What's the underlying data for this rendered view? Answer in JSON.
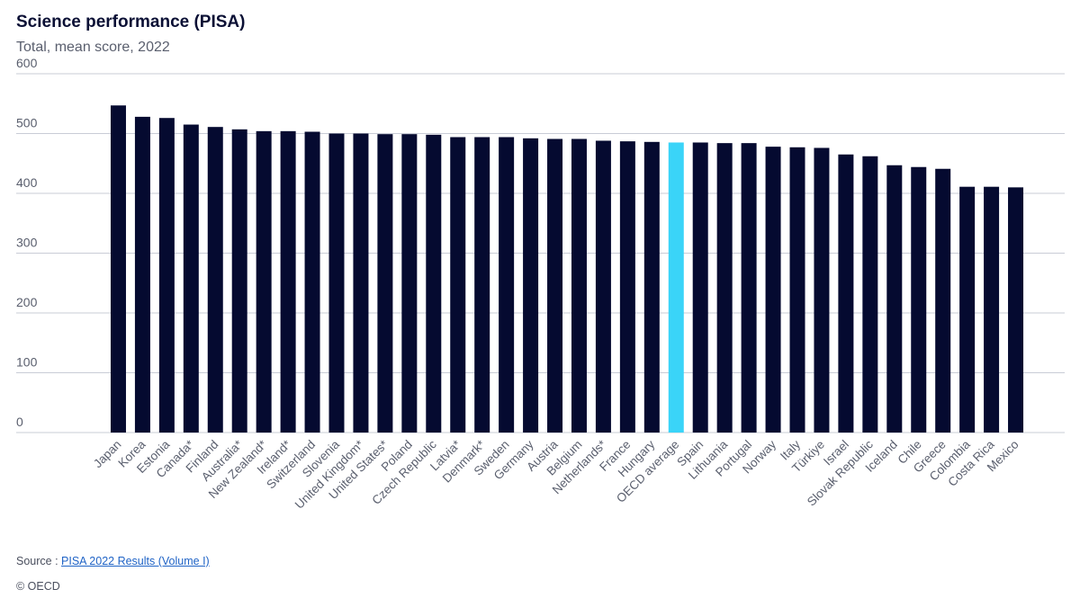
{
  "chart_data": {
    "type": "bar",
    "title": "Science performance (PISA)",
    "subtitle": "Total, mean score, 2022",
    "xlabel": "",
    "ylabel": "",
    "ylim": [
      0,
      600
    ],
    "yticks": [
      0,
      100,
      200,
      300,
      400,
      500,
      600
    ],
    "grid": true,
    "categories": [
      "Japan",
      "Korea",
      "Estonia",
      "Canada*",
      "Finland",
      "Australia*",
      "New Zealand*",
      "Ireland*",
      "Switzerland",
      "Slovenia",
      "United Kingdom*",
      "United States*",
      "Poland",
      "Czech Republic",
      "Latvia*",
      "Denmark*",
      "Sweden",
      "Germany",
      "Austria",
      "Belgium",
      "Netherlands*",
      "France",
      "Hungary",
      "OECD average",
      "Spain",
      "Lithuania",
      "Portugal",
      "Norway",
      "Italy",
      "Türkiye",
      "Israel",
      "Slovak Republic",
      "Iceland",
      "Chile",
      "Greece",
      "Colombia",
      "Costa Rica",
      "Mexico"
    ],
    "values": [
      547,
      528,
      526,
      515,
      511,
      507,
      504,
      504,
      503,
      500,
      500,
      499,
      499,
      498,
      494,
      494,
      494,
      492,
      491,
      491,
      488,
      487,
      486,
      485,
      485,
      484,
      484,
      478,
      477,
      476,
      465,
      462,
      447,
      444,
      441,
      411,
      411,
      410
    ],
    "highlight_category": "OECD average",
    "colors": {
      "bar": "#050a30",
      "highlight": "#3ad4f8",
      "grid": "#c9ccd6",
      "text": "#5a5f6e"
    }
  },
  "footer": {
    "source_prefix": "Source : ",
    "source_link": "PISA 2022 Results (Volume I)",
    "copyright": "© OECD"
  }
}
